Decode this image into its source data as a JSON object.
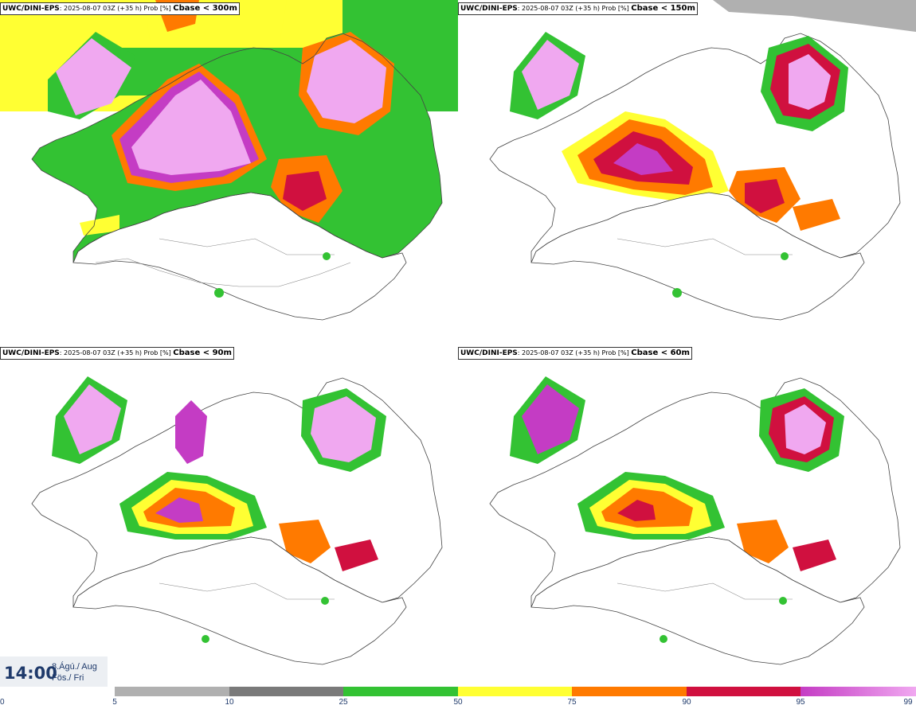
{
  "panels": [
    {
      "source": "UWC/DINI-EPS",
      "info": ": 2025-08-07 03Z (+35 h) Prob [%] ",
      "field": "Cbase < 300m"
    },
    {
      "source": "UWC/DINI-EPS",
      "info": ": 2025-08-07 03Z (+35 h) Prob [%] ",
      "field": "Cbase < 150m"
    },
    {
      "source": "UWC/DINI-EPS",
      "info": ": 2025-08-07 03Z (+35 h) Prob [%] ",
      "field": "Cbase < 90m"
    },
    {
      "source": "UWC/DINI-EPS",
      "info": ": 2025-08-07 03Z (+35 h) Prob [%] ",
      "field": "Cbase < 60m"
    }
  ],
  "time": {
    "clock": "14:00",
    "date_line": "8.Ágú./ Aug",
    "day_line": "Fös./ Fri"
  },
  "colorbar": {
    "ticks": [
      "0",
      "5",
      "10",
      "25",
      "50",
      "75",
      "90",
      "95",
      "99"
    ],
    "colors": [
      "#b0b0b0",
      "#7a7a7a",
      "#33c233",
      "#ffff33",
      "#ff7a00",
      "#d0103f",
      "#c43cc4",
      "#f0a8f0"
    ]
  }
}
